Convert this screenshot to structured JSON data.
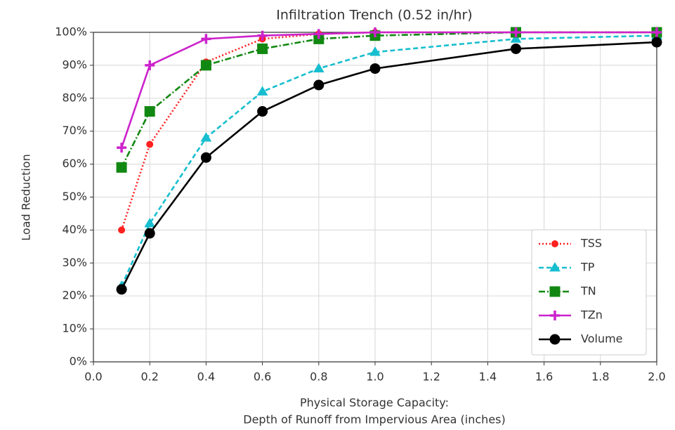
{
  "chart_data": {
    "type": "line",
    "title": "Infiltration Trench (0.52 in/hr)",
    "ylabel": "Load Reduction",
    "xlabel": [
      "Physical Storage Capacity:",
      "Depth of Runoff  from Impervious Area (inches)"
    ],
    "x": [
      0.1,
      0.2,
      0.4,
      0.6,
      0.8,
      1.0,
      1.5,
      2.0
    ],
    "series": [
      {
        "name": "TSS",
        "color": "#ff2020",
        "dash": "dotted",
        "marker": "star",
        "values": [
          40,
          66,
          91,
          98,
          99.5,
          100,
          100,
          100
        ]
      },
      {
        "name": "TP",
        "color": "#17becf",
        "dash": "dashed",
        "marker": "triangle",
        "values": [
          23,
          42,
          68,
          82,
          89,
          94,
          98,
          99
        ]
      },
      {
        "name": "TN",
        "color": "#118811",
        "dash": "dashdot",
        "marker": "square",
        "values": [
          59,
          76,
          90,
          95,
          98,
          99,
          100,
          100
        ]
      },
      {
        "name": "TZn",
        "color": "#cc22cc",
        "dash": "solid",
        "marker": "plus",
        "values": [
          65,
          90,
          98,
          99,
          99.5,
          100,
          100,
          100
        ]
      },
      {
        "name": "Volume",
        "color": "#000000",
        "dash": "solid",
        "marker": "circle",
        "values": [
          22,
          39,
          62,
          76,
          84,
          89,
          95,
          97
        ]
      }
    ],
    "xlim": [
      0,
      2
    ],
    "xticks": [
      {
        "value": 0,
        "label": "0.0"
      },
      0.2,
      0.4,
      0.6,
      0.8,
      {
        "value": 1,
        "label": "1.0"
      },
      1.2,
      1.4,
      1.6,
      1.8,
      {
        "value": 2,
        "label": "2.0"
      }
    ],
    "ylim": [
      0,
      100
    ],
    "yticks": [
      {
        "value": 0,
        "label": "0%"
      },
      {
        "value": 10,
        "label": "10%"
      },
      {
        "value": 20,
        "label": "20%"
      },
      {
        "value": 30,
        "label": "30%"
      },
      {
        "value": 40,
        "label": "40%"
      },
      {
        "value": 50,
        "label": "50%"
      },
      {
        "value": 60,
        "label": "60%"
      },
      {
        "value": 70,
        "label": "70%"
      },
      {
        "value": 80,
        "label": "80%"
      },
      {
        "value": 90,
        "label": "90%"
      },
      {
        "value": 100,
        "label": "100%"
      }
    ],
    "grid": true,
    "legend": "lower right"
  }
}
